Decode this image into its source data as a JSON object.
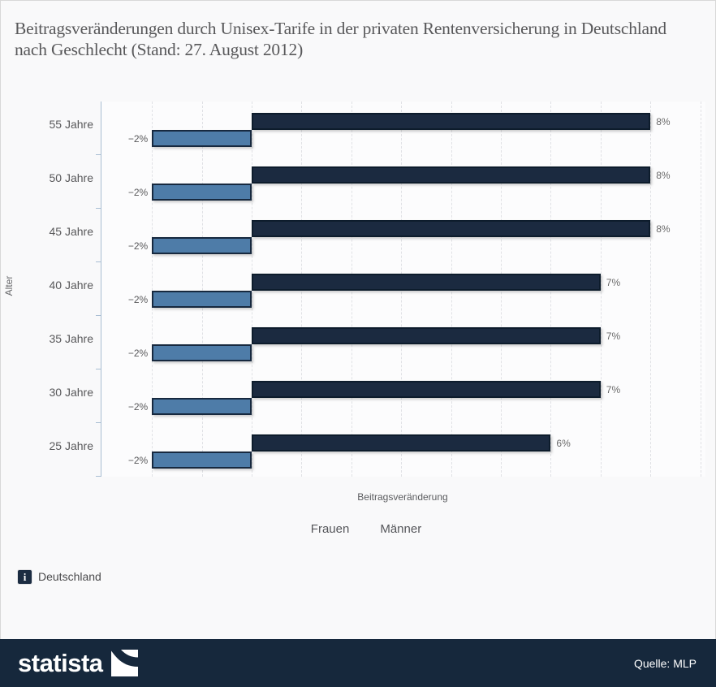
{
  "title": "Beitragsveränderungen durch Unisex-Tarife in der privaten Rentenversicherung in Deutschland nach Geschlecht (Stand: 27. August 2012)",
  "chart_data": {
    "type": "bar",
    "orientation": "horizontal",
    "title": "Beitragsveränderungen durch Unisex-Tarife in der privaten Rentenversicherung in Deutschland nach Geschlecht (Stand: 27. August 2012)",
    "categories": [
      "55 Jahre",
      "50 Jahre",
      "45 Jahre",
      "40 Jahre",
      "35 Jahre",
      "30 Jahre",
      "25 Jahre"
    ],
    "series": [
      {
        "name": "Männer",
        "color": "#1b2a40",
        "values": [
          8,
          8,
          8,
          7,
          7,
          7,
          6
        ],
        "labels": [
          "8%",
          "8%",
          "8%",
          "7%",
          "7%",
          "7%",
          "6%"
        ]
      },
      {
        "name": "Frauen",
        "color": "#4e7ca8",
        "values": [
          -2,
          -2,
          -2,
          -2,
          -2,
          -2,
          -2
        ],
        "labels": [
          "−2%",
          "−2%",
          "−2%",
          "−2%",
          "−2%",
          "−2%",
          "−2%"
        ]
      }
    ],
    "legend": [
      "Frauen",
      "Männer"
    ],
    "legend_position": "bottom",
    "xlabel": "Beitragsveränderung",
    "ylabel": "Alter",
    "xlim": [
      -3,
      9.1
    ],
    "grid": true,
    "gridline_step_pct": 1
  },
  "note": {
    "icon": "i",
    "label": "Deutschland"
  },
  "footer": {
    "brand": "statista",
    "source": "Quelle: MLP"
  },
  "colors": {
    "maenner_bar": "#1b2a40",
    "frauen_bar": "#4e7ca8",
    "axis": "#a9bed3",
    "footer_bg": "#16283c",
    "page_bg": "#f9f9fa"
  }
}
